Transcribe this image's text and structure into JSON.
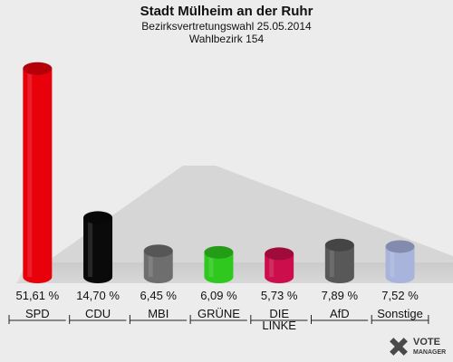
{
  "chart_data": {
    "type": "bar",
    "title": "Stadt Mülheim an der Ruhr",
    "subtitle1": "Bezirksvertretungswahl 25.05.2014",
    "subtitle2": "Wahlbezirk 154",
    "categories": [
      "SPD",
      "CDU",
      "MBI",
      "GRÜNE",
      "DIE LINKE",
      "AfD",
      "Sonstige"
    ],
    "values": [
      51.61,
      14.7,
      6.45,
      6.09,
      5.73,
      7.89,
      7.52
    ],
    "value_labels": [
      "51,61 %",
      "14,70 %",
      "6,45 %",
      "6,09 %",
      "5,73 %",
      "7,89 %",
      "7,52 %"
    ],
    "colors": [
      "#e8000b",
      "#0a0a0a",
      "#6e6e6e",
      "#2ec81e",
      "#cc0f4c",
      "#585858",
      "#a8b4dc"
    ],
    "ylim": [
      0,
      52
    ]
  },
  "logo": {
    "line1": "VOTE",
    "line2": "MANAGER"
  }
}
